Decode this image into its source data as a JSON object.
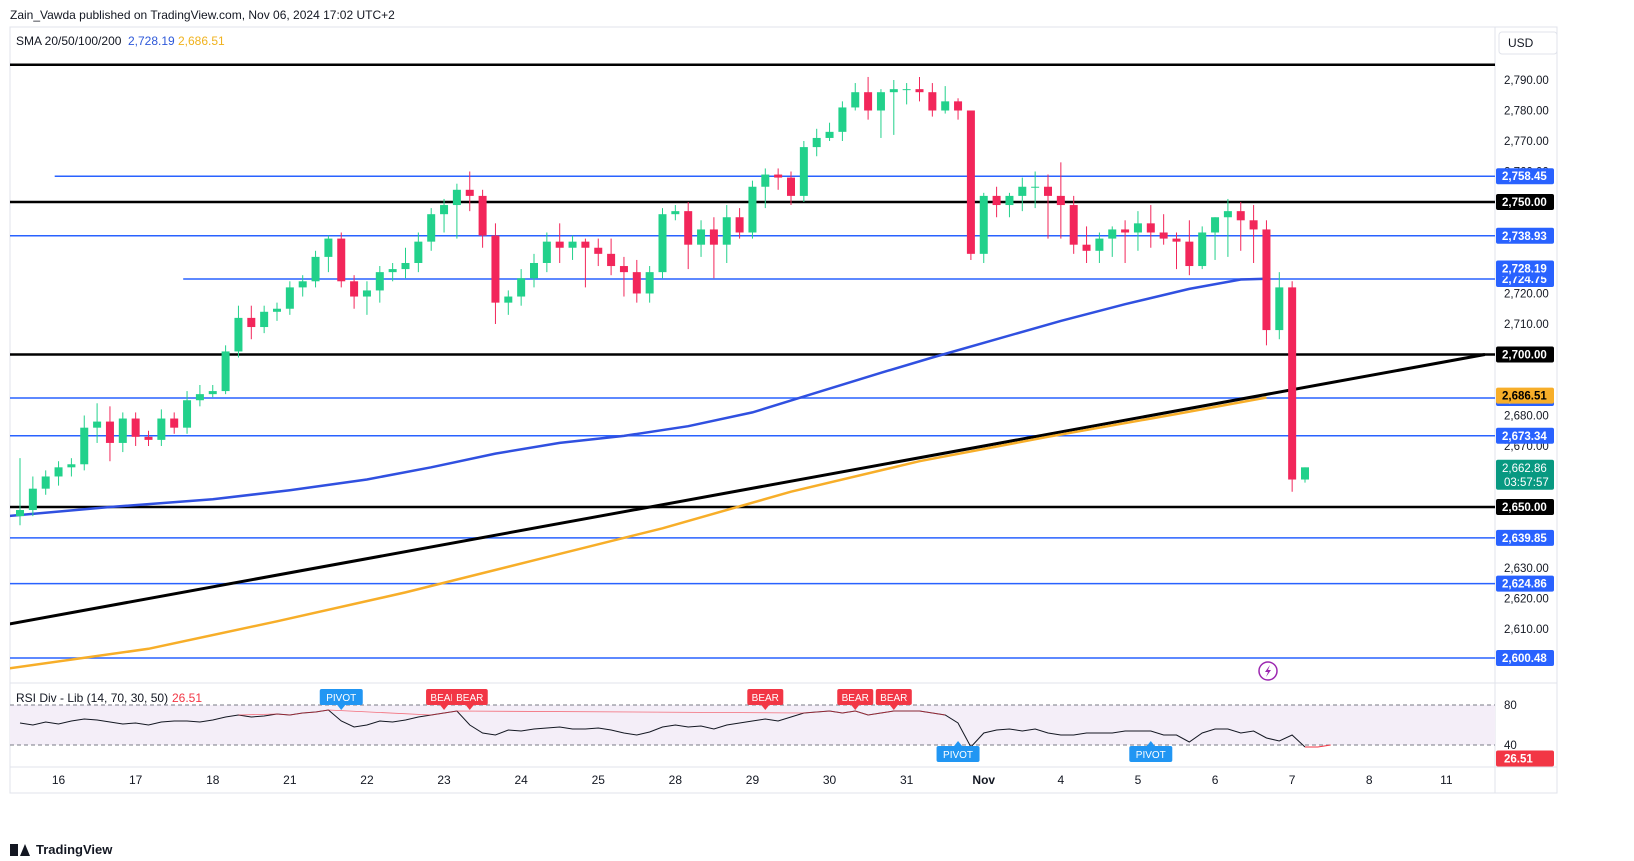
{
  "header": {
    "published": "Zain_Vawda published on TradingView.com, Nov 06, 2024 17:02 UTC+2"
  },
  "footer": {
    "brand": "TradingView"
  },
  "chart_data": {
    "type": "candlestick",
    "currency": "USD",
    "indicator_main": {
      "label": "SMA 20/50/100/200",
      "value1": "2,728.19",
      "value1_color": "#2e59d9",
      "value2": "2,686.51",
      "value2_color": "#f0b21d"
    },
    "ylim": [
      2595,
      2798
    ],
    "y_ticks": [
      "2,790.00",
      "2,780.00",
      "2,770.00",
      "2,760.00",
      "2,720.00",
      "2,710.00",
      "2,680.00",
      "2,670.00",
      "2,630.00",
      "2,620.00",
      "2,610.00"
    ],
    "x_labels": [
      {
        "text": "16",
        "i": 3
      },
      {
        "text": "17",
        "i": 9
      },
      {
        "text": "18",
        "i": 15
      },
      {
        "text": "21",
        "i": 21
      },
      {
        "text": "22",
        "i": 27
      },
      {
        "text": "23",
        "i": 33
      },
      {
        "text": "24",
        "i": 39
      },
      {
        "text": "25",
        "i": 45
      },
      {
        "text": "28",
        "i": 51
      },
      {
        "text": "29",
        "i": 57
      },
      {
        "text": "30",
        "i": 63
      },
      {
        "text": "31",
        "i": 69
      },
      {
        "text": "Nov",
        "i": 75,
        "bold": true
      },
      {
        "text": "4",
        "i": 81
      },
      {
        "text": "5",
        "i": 87
      },
      {
        "text": "6",
        "i": 93
      },
      {
        "text": "7",
        "i": 99
      },
      {
        "text": "8",
        "i": 105
      },
      {
        "text": "11",
        "i": 111
      }
    ],
    "hlines": [
      {
        "value": 2758.45,
        "label": "2,758.45",
        "color": "#2962ff",
        "width": 1.5,
        "from": 2.7
      },
      {
        "value": 2750.0,
        "label": "2,750.00",
        "color": "#000000",
        "width": 2.5,
        "from": -1
      },
      {
        "value": 2738.93,
        "label": "2,738.93",
        "color": "#2962ff",
        "width": 1.5,
        "from": -1
      },
      {
        "value": 2724.75,
        "label": "2,724.75",
        "color": "#2962ff",
        "width": 1.5,
        "from": 12.7
      },
      {
        "value": 2700.0,
        "label": "2,700.00",
        "color": "#000000",
        "width": 2.5,
        "from": -1
      },
      {
        "value": 2685.75,
        "label": "2,685.75",
        "color": "#2962ff",
        "width": 1.5,
        "from": -1
      },
      {
        "value": 2673.34,
        "label": "2,673.34",
        "color": "#2962ff",
        "width": 1.5,
        "from": -1
      },
      {
        "value": 2650.0,
        "label": "2,650.00",
        "color": "#000000",
        "width": 2.5,
        "from": -1
      },
      {
        "value": 2639.85,
        "label": "2,639.85",
        "color": "#2962ff",
        "width": 1.5,
        "from": -1
      },
      {
        "value": 2624.86,
        "label": "2,624.86",
        "color": "#2962ff",
        "width": 1.5,
        "from": -1
      },
      {
        "value": 2600.48,
        "label": "2,600.48",
        "color": "#2962ff",
        "width": 1.5,
        "from": -1
      },
      {
        "value": 2795.0,
        "label": "",
        "color": "#000000",
        "width": 2.5,
        "from": -1
      }
    ],
    "trendline": {
      "from": {
        "i": -1,
        "value": 2611.5
      },
      "to": {
        "i": 114,
        "value": 2700.0
      },
      "color": "#000000"
    },
    "sma_blue": [
      [
        -1,
        2647
      ],
      [
        7,
        2650
      ],
      [
        15,
        2652.5
      ],
      [
        21,
        2655.5
      ],
      [
        27,
        2659
      ],
      [
        32,
        2663
      ],
      [
        37,
        2667.5
      ],
      [
        42,
        2671
      ],
      [
        47,
        2673.3
      ],
      [
        52,
        2676.5
      ],
      [
        57,
        2681
      ],
      [
        62,
        2687.5
      ],
      [
        67,
        2694
      ],
      [
        71,
        2699
      ],
      [
        76,
        2705
      ],
      [
        81,
        2711
      ],
      [
        86,
        2716.5
      ],
      [
        91,
        2721.5
      ],
      [
        95,
        2724.6
      ],
      [
        97,
        2724.8
      ]
    ],
    "sma_orange": [
      [
        -1,
        2597
      ],
      [
        10,
        2603.5
      ],
      [
        20,
        2612.5
      ],
      [
        30,
        2622
      ],
      [
        40,
        2632.5
      ],
      [
        50,
        2643
      ],
      [
        60,
        2655
      ],
      [
        70,
        2665
      ],
      [
        80,
        2673
      ],
      [
        90,
        2680.5
      ],
      [
        97,
        2685.9
      ]
    ],
    "price_label": {
      "value": 2662.86,
      "text": "2,662.86",
      "countdown": "03:57:57",
      "color": "#089981"
    },
    "sma_labels": [
      {
        "value": 2728.19,
        "text": "2,728.19",
        "color": "#2962ff"
      },
      {
        "value": 2686.51,
        "text": "2,686.51",
        "color": "#f7ae29",
        "text_color": "#000000"
      }
    ],
    "candles": [
      [
        2647,
        2666,
        2644,
        2649
      ],
      [
        2649,
        2660,
        2647,
        2656
      ],
      [
        2656,
        2662,
        2654,
        2660
      ],
      [
        2660,
        2665,
        2657,
        2663
      ],
      [
        2663,
        2666,
        2660,
        2664
      ],
      [
        2664,
        2680,
        2662,
        2676
      ],
      [
        2676,
        2684,
        2671,
        2678
      ],
      [
        2678,
        2683,
        2665,
        2671
      ],
      [
        2671,
        2681,
        2668,
        2679
      ],
      [
        2679,
        2681,
        2670,
        2673
      ],
      [
        2673,
        2675,
        2670,
        2672
      ],
      [
        2672,
        2682,
        2670,
        2679
      ],
      [
        2679,
        2681,
        2674,
        2676
      ],
      [
        2676,
        2688,
        2674,
        2685
      ],
      [
        2685,
        2690,
        2683,
        2687
      ],
      [
        2687,
        2690,
        2686,
        2688
      ],
      [
        2688,
        2703,
        2687,
        2701
      ],
      [
        2701,
        2716,
        2699,
        2712
      ],
      [
        2712,
        2716,
        2705,
        2709
      ],
      [
        2709,
        2716,
        2707,
        2714
      ],
      [
        2714,
        2717,
        2711,
        2715
      ],
      [
        2715,
        2724,
        2713,
        2722
      ],
      [
        2722,
        2726,
        2719,
        2724
      ],
      [
        2724,
        2734,
        2722,
        2732
      ],
      [
        2732,
        2739,
        2727,
        2738
      ],
      [
        2738,
        2740,
        2722,
        2724
      ],
      [
        2724,
        2726,
        2715,
        2719
      ],
      [
        2719,
        2724,
        2713,
        2721
      ],
      [
        2721,
        2729,
        2717,
        2727
      ],
      [
        2727,
        2730,
        2724,
        2728
      ],
      [
        2728,
        2735,
        2725,
        2730
      ],
      [
        2730,
        2740,
        2727,
        2737
      ],
      [
        2737,
        2748,
        2734,
        2746
      ],
      [
        2746,
        2751,
        2740,
        2749
      ],
      [
        2749,
        2756,
        2738,
        2754
      ],
      [
        2754,
        2760,
        2747,
        2752
      ],
      [
        2752,
        2754,
        2735,
        2739
      ],
      [
        2739,
        2743,
        2710,
        2717
      ],
      [
        2717,
        2721,
        2713,
        2719
      ],
      [
        2719,
        2728,
        2716,
        2725
      ],
      [
        2725,
        2733,
        2722,
        2730
      ],
      [
        2730,
        2740,
        2727,
        2737
      ],
      [
        2737,
        2743,
        2730,
        2735
      ],
      [
        2735,
        2739,
        2731,
        2737
      ],
      [
        2737,
        2738,
        2722,
        2735
      ],
      [
        2735,
        2738,
        2729,
        2733
      ],
      [
        2733,
        2738,
        2726,
        2729
      ],
      [
        2729,
        2732,
        2719,
        2727
      ],
      [
        2727,
        2731,
        2717,
        2720
      ],
      [
        2720,
        2729,
        2717,
        2727
      ],
      [
        2727,
        2748,
        2725,
        2746
      ],
      [
        2746,
        2749,
        2744,
        2747
      ],
      [
        2747,
        2750,
        2728,
        2736
      ],
      [
        2736,
        2744,
        2732,
        2741
      ],
      [
        2741,
        2745,
        2725,
        2736
      ],
      [
        2736,
        2749,
        2730,
        2745
      ],
      [
        2745,
        2748,
        2738,
        2740
      ],
      [
        2740,
        2757,
        2738,
        2755
      ],
      [
        2755,
        2761,
        2748,
        2759
      ],
      [
        2759,
        2761,
        2754,
        2758
      ],
      [
        2758,
        2760,
        2749,
        2752
      ],
      [
        2752,
        2770,
        2750,
        2768
      ],
      [
        2768,
        2774,
        2765,
        2771
      ],
      [
        2771,
        2776,
        2770,
        2773
      ],
      [
        2773,
        2783,
        2770,
        2781
      ],
      [
        2781,
        2789,
        2780,
        2786
      ],
      [
        2786,
        2791,
        2777,
        2780
      ],
      [
        2780,
        2787,
        2771,
        2786
      ],
      [
        2786,
        2790,
        2772,
        2787
      ],
      [
        2787,
        2789,
        2782,
        2787
      ],
      [
        2787,
        2791,
        2783,
        2786
      ],
      [
        2786,
        2789,
        2778,
        2780
      ],
      [
        2780,
        2788,
        2779,
        2783
      ],
      [
        2783,
        2784,
        2777,
        2780
      ],
      [
        2780,
        2780,
        2731,
        2733
      ],
      [
        2733,
        2753,
        2730,
        2752
      ],
      [
        2752,
        2755,
        2745,
        2749
      ],
      [
        2749,
        2753,
        2745,
        2752
      ],
      [
        2752,
        2758,
        2747,
        2755
      ],
      [
        2755,
        2760,
        2748,
        2755
      ],
      [
        2755,
        2759,
        2738,
        2752
      ],
      [
        2752,
        2763,
        2738,
        2749
      ],
      [
        2749,
        2752,
        2733,
        2736
      ],
      [
        2736,
        2742,
        2730,
        2734
      ],
      [
        2734,
        2740,
        2730,
        2738
      ],
      [
        2738,
        2742,
        2732,
        2741
      ],
      [
        2741,
        2744,
        2730,
        2740
      ],
      [
        2740,
        2747,
        2734,
        2743
      ],
      [
        2743,
        2749,
        2735,
        2740
      ],
      [
        2740,
        2746,
        2736,
        2738
      ],
      [
        2738,
        2740,
        2728,
        2737
      ],
      [
        2737,
        2744,
        2726,
        2729
      ],
      [
        2729,
        2742,
        2728,
        2740
      ],
      [
        2740,
        2745,
        2731,
        2745
      ],
      [
        2745,
        2751,
        2732,
        2747
      ],
      [
        2747,
        2750,
        2734,
        2744
      ],
      [
        2744,
        2749,
        2730,
        2741
      ],
      [
        2741,
        2744,
        2703,
        2708
      ],
      [
        2708,
        2727,
        2705,
        2722
      ],
      [
        2722,
        2724,
        2655,
        2659
      ],
      [
        2659,
        2663,
        2658,
        2663
      ]
    ],
    "rsi": {
      "label": "RSI Div - Lib (14, 70, 30, 50)",
      "value": "26.51",
      "value_color": "#f23645",
      "levels": [
        80,
        40
      ],
      "ylim": [
        20,
        95
      ],
      "line": [
        62,
        60,
        63,
        61,
        64,
        66,
        65,
        63,
        61,
        62,
        60,
        63,
        64,
        64,
        63,
        65,
        68,
        70,
        68,
        69,
        71,
        70,
        72,
        73,
        75,
        64,
        58,
        60,
        64,
        63,
        65,
        68,
        70,
        72,
        74,
        60,
        52,
        50,
        55,
        54,
        56,
        57,
        58,
        56,
        56,
        57,
        55,
        52,
        50,
        53,
        58,
        60,
        58,
        59,
        56,
        60,
        62,
        64,
        66,
        64,
        68,
        72,
        73,
        74,
        72,
        74,
        70,
        72,
        74,
        74,
        74,
        72,
        70,
        62,
        38,
        52,
        55,
        56,
        54,
        56,
        52,
        50,
        50,
        52,
        52,
        52,
        54,
        54,
        54,
        50,
        50,
        43,
        52,
        56,
        56,
        52,
        54,
        47,
        44,
        50,
        38,
        38,
        40
      ],
      "line_red_from": 100,
      "overbought_line_from": 0,
      "markers": [
        {
          "text": "PIVOT",
          "i": 25,
          "type": "pivot",
          "pos": "top"
        },
        {
          "text": "BEAR",
          "i": 33,
          "type": "bear",
          "pos": "top"
        },
        {
          "text": "BEAR",
          "i": 35,
          "type": "bear",
          "pos": "top"
        },
        {
          "text": "BEAR",
          "i": 58,
          "type": "bear",
          "pos": "top"
        },
        {
          "text": "BEAR",
          "i": 65,
          "type": "bear",
          "pos": "top"
        },
        {
          "text": "BEAR",
          "i": 68,
          "type": "bear",
          "pos": "top"
        },
        {
          "text": "PIVOT",
          "i": 73,
          "type": "pivot",
          "pos": "bottom"
        },
        {
          "text": "PIVOT",
          "i": 88,
          "type": "pivot",
          "pos": "bottom"
        }
      ]
    }
  }
}
